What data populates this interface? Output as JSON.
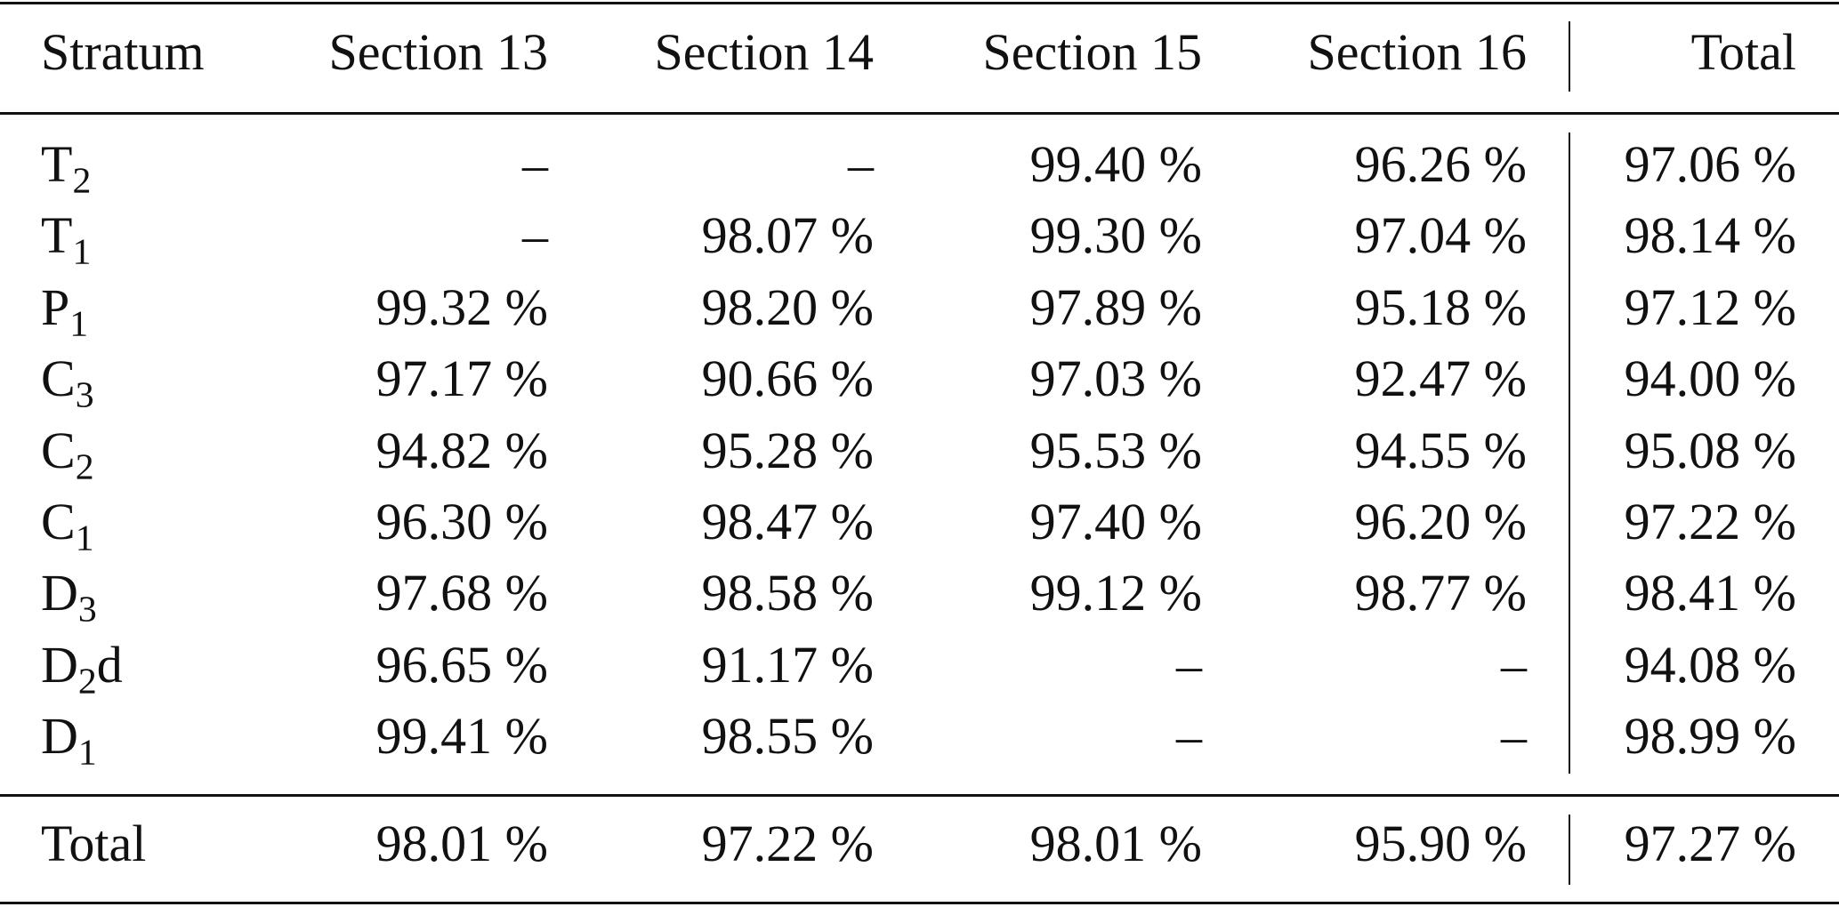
{
  "table": {
    "header": [
      "Stratum",
      "Section 13",
      "Section 14",
      "Section 15",
      "Section 16",
      "Total"
    ],
    "rows": [
      {
        "stratum": {
          "main": "T",
          "sub": "2"
        },
        "cells": [
          "–",
          "–",
          "99.40 %",
          "96.26 %",
          "97.06 %"
        ]
      },
      {
        "stratum": {
          "main": "T",
          "sub": "1"
        },
        "cells": [
          "–",
          "98.07 %",
          "99.30 %",
          "97.04 %",
          "98.14 %"
        ]
      },
      {
        "stratum": {
          "main": "P",
          "sub": "1"
        },
        "cells": [
          "99.32 %",
          "98.20 %",
          "97.89 %",
          "95.18 %",
          "97.12 %"
        ]
      },
      {
        "stratum": {
          "main": "C",
          "sub": "3"
        },
        "cells": [
          "97.17 %",
          "90.66 %",
          "97.03 %",
          "92.47 %",
          "94.00 %"
        ]
      },
      {
        "stratum": {
          "main": "C",
          "sub": "2"
        },
        "cells": [
          "94.82 %",
          "95.28 %",
          "95.53 %",
          "94.55 %",
          "95.08 %"
        ]
      },
      {
        "stratum": {
          "main": "C",
          "sub": "1"
        },
        "cells": [
          "96.30 %",
          "98.47 %",
          "97.40 %",
          "96.20 %",
          "97.22 %"
        ]
      },
      {
        "stratum": {
          "main": "D",
          "sub": "3"
        },
        "cells": [
          "97.68 %",
          "98.58 %",
          "99.12 %",
          "98.77 %",
          "98.41 %"
        ]
      },
      {
        "stratum": {
          "main": "D",
          "sub": "2",
          "after": "d"
        },
        "cells": [
          "96.65 %",
          "91.17 %",
          "–",
          "–",
          "94.08 %"
        ]
      },
      {
        "stratum": {
          "main": "D",
          "sub": "1"
        },
        "cells": [
          "99.41 %",
          "98.55 %",
          "–",
          "–",
          "98.99 %"
        ]
      }
    ],
    "total": {
      "label": "Total",
      "cells": [
        "98.01 %",
        "97.22 %",
        "98.01 %",
        "95.90 %",
        "97.27 %"
      ]
    }
  }
}
